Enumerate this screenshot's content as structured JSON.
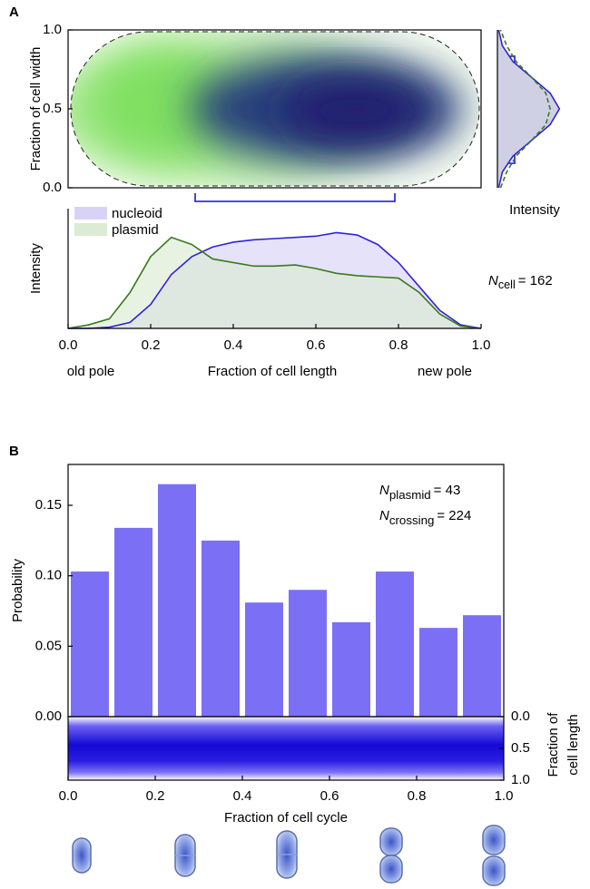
{
  "chart_data": [
    {
      "type": "heatmap",
      "panel": "A",
      "ylabel": "Fraction of cell width",
      "ylim": [
        0,
        1
      ],
      "yticks": [
        {
          "value": 0,
          "label": "0.0"
        },
        0.5,
        {
          "value": 1,
          "label": "1.0"
        }
      ]
    },
    {
      "type": "area",
      "xlabel": "Fraction of cell length",
      "ylabel": "Intensity",
      "pole_labels": [
        "old pole",
        "new pole"
      ],
      "annotation": {
        "symbol": "N",
        "subscript": "cell",
        "text": "= 162"
      },
      "x": [
        0,
        0.05,
        0.1,
        0.15,
        0.2,
        0.25,
        0.3,
        0.35,
        0.4,
        0.45,
        0.5,
        0.55,
        0.6,
        0.65,
        0.7,
        0.75,
        0.8,
        0.85,
        0.9,
        0.95,
        1
      ],
      "series": [
        {
          "name": "nucleoid",
          "color": "#2f22d8",
          "fill": "#d9d2f7",
          "values": [
            0,
            0,
            0.01,
            0.05,
            0.2,
            0.45,
            0.6,
            0.68,
            0.72,
            0.74,
            0.75,
            0.76,
            0.77,
            0.8,
            0.78,
            0.7,
            0.55,
            0.35,
            0.15,
            0.03,
            0
          ]
        },
        {
          "name": "plasmid",
          "color": "#3a7a1c",
          "fill": "#dcebd3",
          "values": [
            0,
            0.03,
            0.08,
            0.3,
            0.6,
            0.76,
            0.7,
            0.58,
            0.55,
            0.52,
            0.52,
            0.53,
            0.5,
            0.46,
            0.44,
            0.43,
            0.42,
            0.3,
            0.12,
            0.02,
            0
          ]
        }
      ],
      "xlim": [
        0,
        1
      ],
      "ylim": [
        0,
        1
      ],
      "xticks": [
        {
          "value": 0,
          "label": "0.0"
        },
        0.2,
        0.4,
        0.6,
        0.8,
        {
          "value": 1,
          "label": "1.0"
        }
      ]
    },
    {
      "type": "line",
      "orientation": "horizontal",
      "xlabel": "Intensity",
      "y": [
        0,
        0.1,
        0.2,
        0.3,
        0.4,
        0.5,
        0.6,
        0.7,
        0.8,
        0.9,
        1
      ],
      "series": [
        {
          "color": "#2f22d8",
          "dashed": false,
          "values": [
            0.02,
            0.08,
            0.25,
            0.55,
            0.85,
            1,
            0.85,
            0.55,
            0.25,
            0.08,
            0.02
          ]
        },
        {
          "color": "#3a7a1c",
          "dashed": true,
          "values": [
            0.05,
            0.15,
            0.3,
            0.55,
            0.78,
            0.85,
            0.78,
            0.55,
            0.3,
            0.15,
            0.05
          ]
        }
      ],
      "xlim": [
        0,
        1.2
      ],
      "ylim": [
        0,
        1
      ]
    },
    {
      "type": "histogram",
      "panel": "B",
      "ylabel": "Probability",
      "bins": [
        0,
        0.1,
        0.2,
        0.3,
        0.4,
        0.5,
        0.6,
        0.7,
        0.8,
        0.9,
        1
      ],
      "values": [
        0.103,
        0.134,
        0.165,
        0.125,
        0.081,
        0.09,
        0.067,
        0.103,
        0.063,
        0.072
      ],
      "color": "#7b70f5",
      "annotations": [
        {
          "symbol": "N",
          "subscript": "plasmid",
          "text": "= 43"
        },
        {
          "symbol": "N",
          "subscript": "crossing",
          "text": "= 224"
        }
      ],
      "xlim": [
        0,
        1
      ],
      "ylim": [
        0,
        0.179
      ],
      "yticks": [
        {
          "value": 0,
          "label": "0.00"
        },
        0.05,
        {
          "value": 0.1,
          "label": "0.10"
        },
        0.15
      ]
    },
    {
      "type": "heatmap",
      "xlabel": "Fraction of cell cycle",
      "ylabel": [
        "Fraction of",
        "cell length"
      ],
      "xlim": [
        0,
        1
      ],
      "ylim": [
        1,
        0
      ],
      "xticks": [
        {
          "value": 0,
          "label": "0.0"
        },
        0.2,
        0.4,
        0.6,
        0.8,
        {
          "value": 1,
          "label": "1.0"
        }
      ],
      "yticks": [
        {
          "value": 0,
          "label": "0.0"
        },
        0.5,
        {
          "value": 1,
          "label": "1.0"
        }
      ]
    }
  ]
}
